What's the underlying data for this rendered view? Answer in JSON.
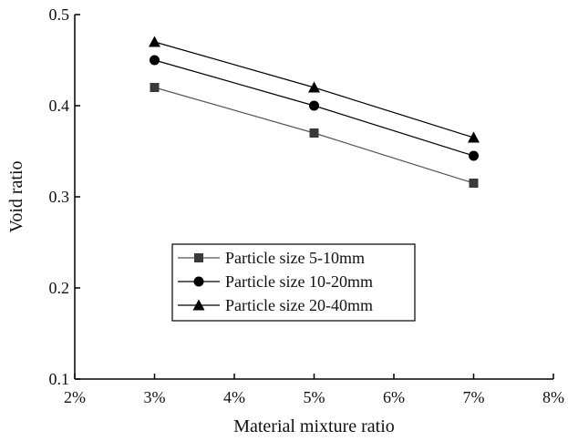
{
  "chart_data": {
    "type": "line",
    "xlabel": "Material mixture ratio",
    "ylabel": "Void ratio",
    "x_ticks": [
      "2%",
      "3%",
      "4%",
      "5%",
      "6%",
      "7%",
      "8%"
    ],
    "y_ticks": [
      "0.1",
      "0.2",
      "0.3",
      "0.4",
      "0.5"
    ],
    "xlim": [
      2,
      8
    ],
    "ylim": [
      0.1,
      0.5
    ],
    "legend_position": "center-left",
    "series": [
      {
        "name": "Particle size 5-10mm",
        "marker": "square",
        "color": "#3a3a3a",
        "line_color": "#555555",
        "x": [
          3,
          5,
          7
        ],
        "y": [
          0.42,
          0.37,
          0.315
        ]
      },
      {
        "name": "Particle size 10-20mm",
        "marker": "circle",
        "color": "#000000",
        "line_color": "#000000",
        "x": [
          3,
          5,
          7
        ],
        "y": [
          0.45,
          0.4,
          0.345
        ]
      },
      {
        "name": "Particle size 20-40mm",
        "marker": "triangle",
        "color": "#000000",
        "line_color": "#000000",
        "x": [
          3,
          5,
          7
        ],
        "y": [
          0.47,
          0.42,
          0.365
        ]
      }
    ]
  }
}
